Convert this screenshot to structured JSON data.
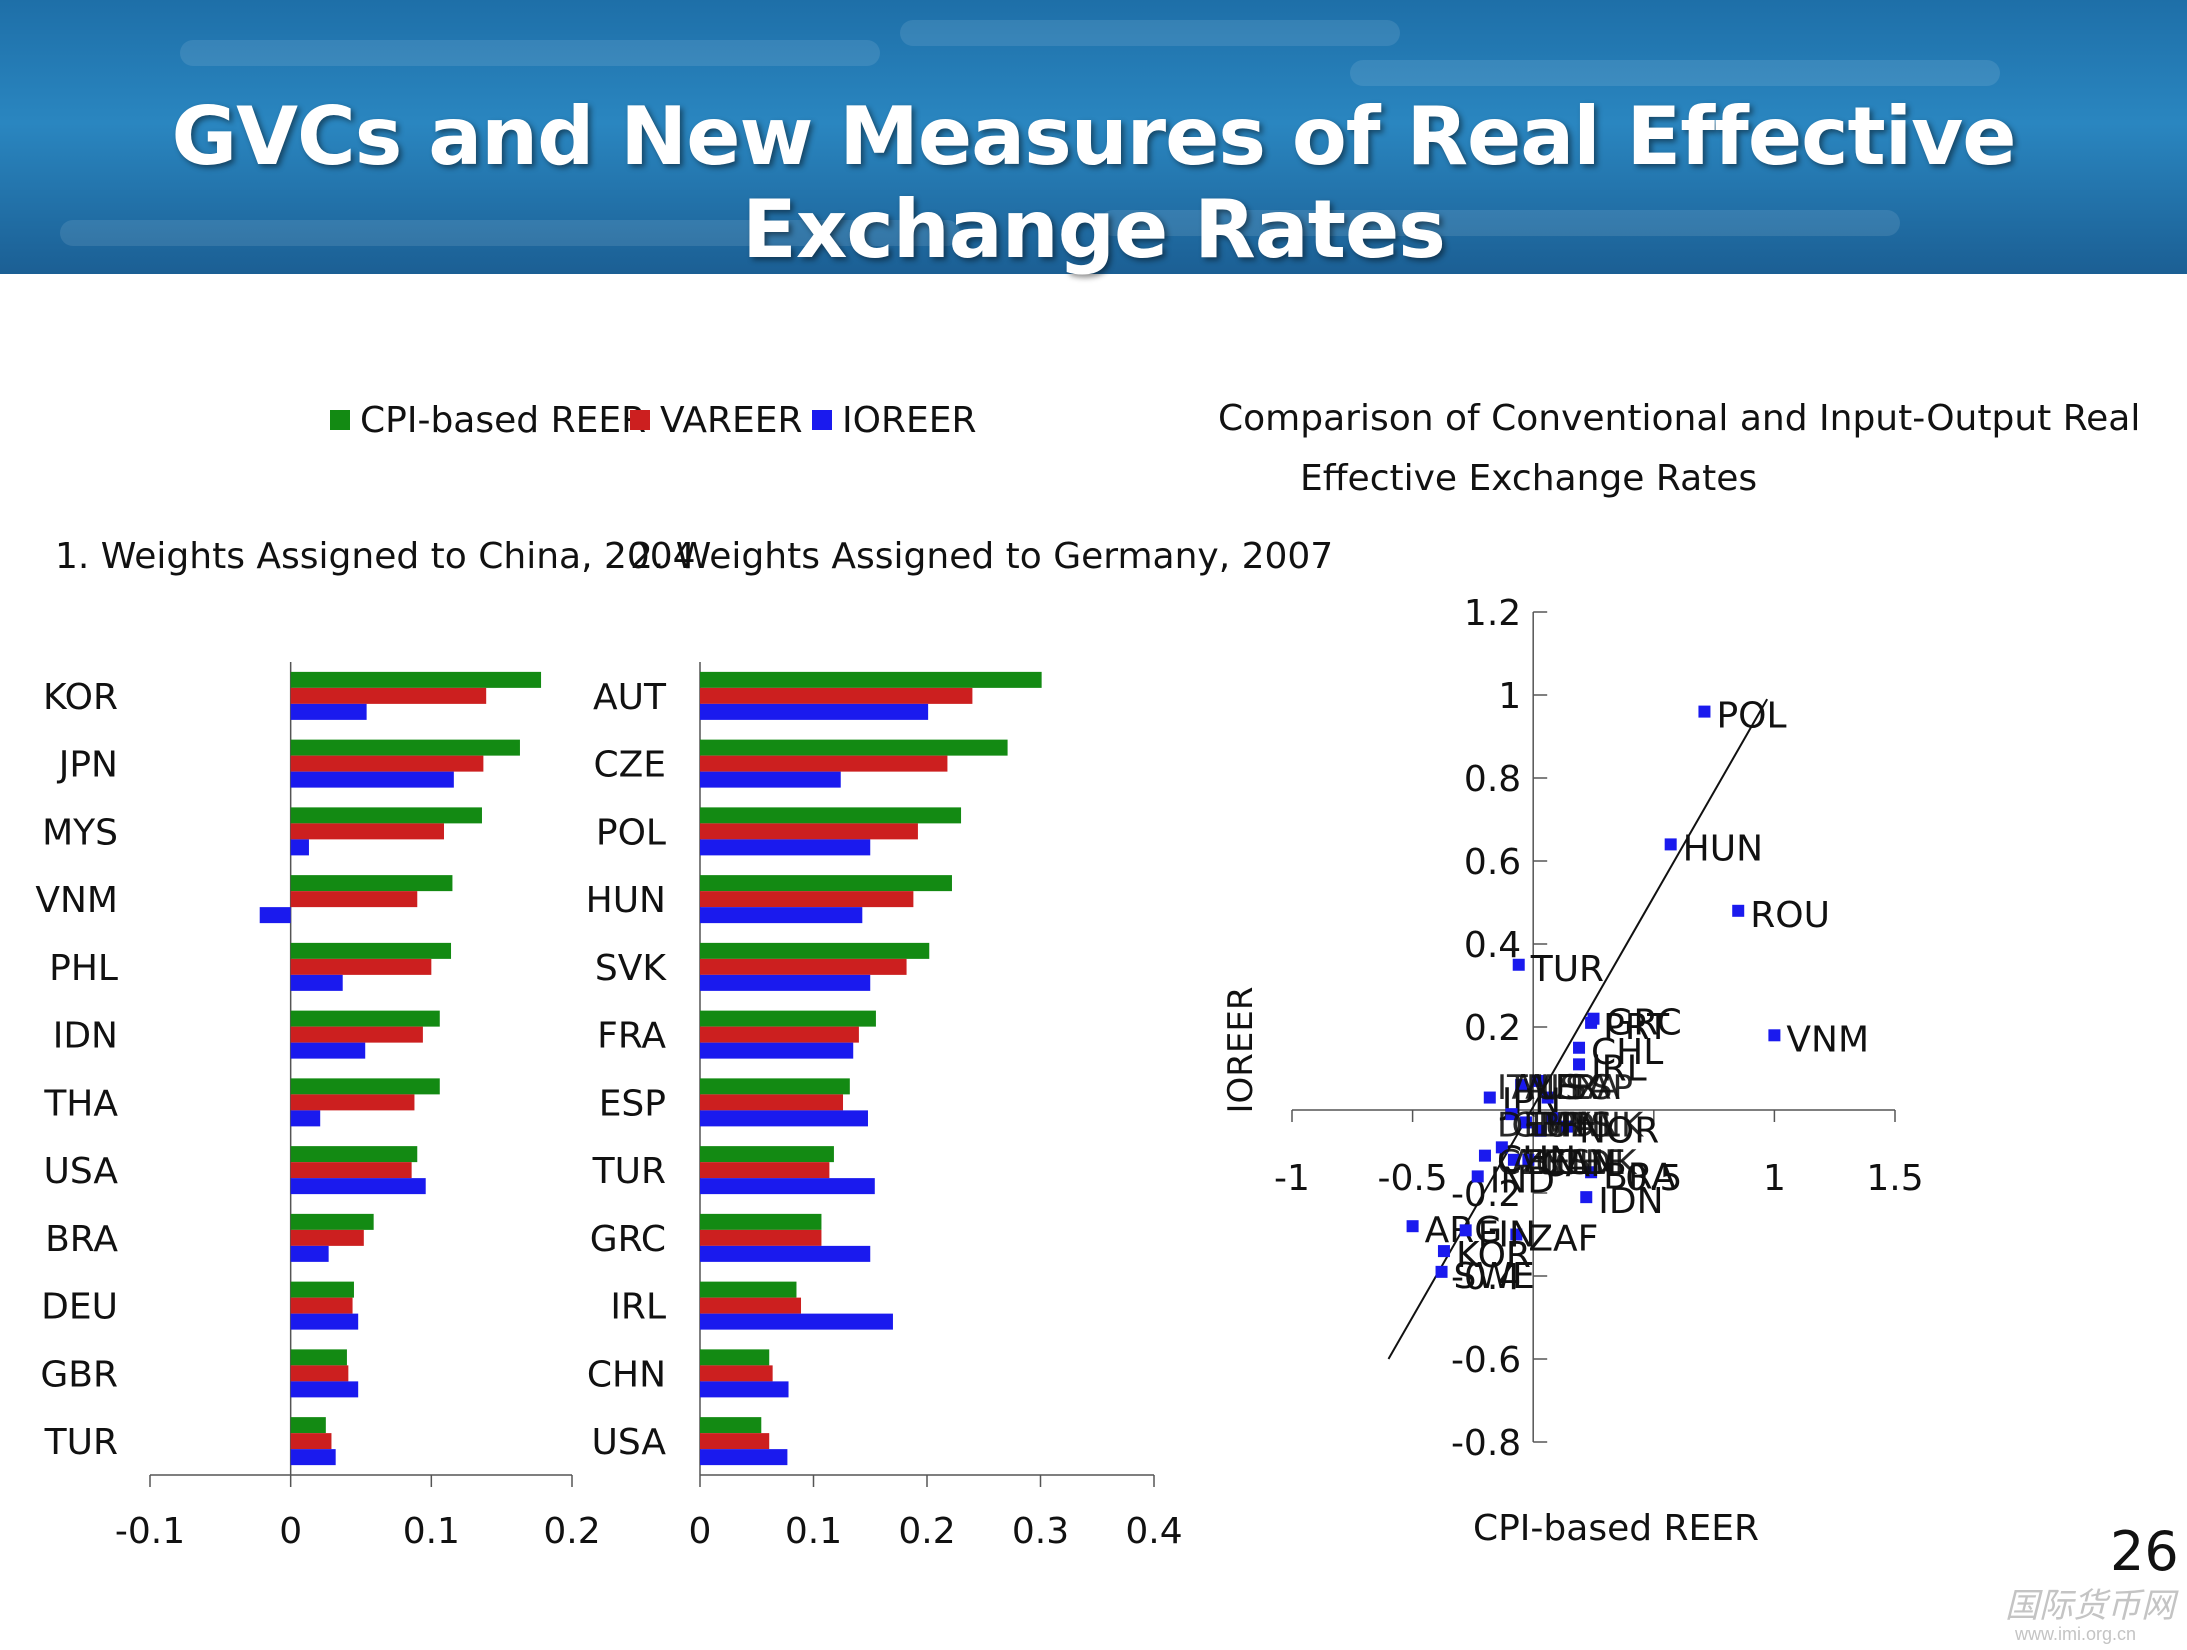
{
  "slide": {
    "title": "GVCs and New Measures of Real Effective Exchange Rates",
    "page_number": "26",
    "watermark": "国际货币网",
    "watermark_url": "www.imi.org.cn"
  },
  "legend": [
    {
      "label": "CPI-based REER",
      "color": "#138a13"
    },
    {
      "label": "VAREER",
      "color": "#cc1f1f"
    },
    {
      "label": "IOREER",
      "color": "#1a1aee"
    }
  ],
  "chart_data": [
    {
      "type": "bar",
      "orientation": "horizontal",
      "title": "1. Weights Assigned to China, 2004",
      "categories": [
        "KOR",
        "JPN",
        "MYS",
        "VNM",
        "PHL",
        "IDN",
        "THA",
        "USA",
        "BRA",
        "DEU",
        "GBR",
        "TUR"
      ],
      "series": [
        {
          "name": "CPI-based REER",
          "color": "#138a13",
          "values": [
            0.178,
            0.163,
            0.136,
            0.115,
            0.114,
            0.106,
            0.106,
            0.09,
            0.059,
            0.045,
            0.04,
            0.025
          ]
        },
        {
          "name": "VAREER",
          "color": "#cc1f1f",
          "values": [
            0.139,
            0.137,
            0.109,
            0.09,
            0.1,
            0.094,
            0.088,
            0.086,
            0.052,
            0.044,
            0.041,
            0.029
          ]
        },
        {
          "name": "IOREER",
          "color": "#1a1aee",
          "values": [
            0.054,
            0.116,
            0.013,
            -0.022,
            0.037,
            0.053,
            0.021,
            0.096,
            0.027,
            0.048,
            0.048,
            0.032
          ]
        }
      ],
      "xlim": [
        -0.1,
        0.2
      ],
      "xticks": [
        "-0.1",
        "0",
        "0.1",
        "0.2"
      ]
    },
    {
      "type": "bar",
      "orientation": "horizontal",
      "title": "2. Weights Assigned to Germany, 2007",
      "categories": [
        "AUT",
        "CZE",
        "POL",
        "HUN",
        "SVK",
        "FRA",
        "ESP",
        "TUR",
        "GRC",
        "IRL",
        "CHN",
        "USA"
      ],
      "series": [
        {
          "name": "CPI-based REER",
          "color": "#138a13",
          "values": [
            0.301,
            0.271,
            0.23,
            0.222,
            0.202,
            0.155,
            0.132,
            0.118,
            0.107,
            0.085,
            0.061,
            0.054
          ]
        },
        {
          "name": "VAREER",
          "color": "#cc1f1f",
          "values": [
            0.24,
            0.218,
            0.192,
            0.188,
            0.182,
            0.14,
            0.126,
            0.114,
            0.107,
            0.089,
            0.064,
            0.061
          ]
        },
        {
          "name": "IOREER",
          "color": "#1a1aee",
          "values": [
            0.201,
            0.124,
            0.15,
            0.143,
            0.15,
            0.135,
            0.148,
            0.154,
            0.15,
            0.17,
            0.078,
            0.077
          ]
        }
      ],
      "xlim": [
        0,
        0.4
      ],
      "xticks": [
        "0",
        "0.1",
        "0.2",
        "0.3",
        "0.4"
      ]
    },
    {
      "type": "scatter",
      "title": "Comparison of Conventional and Input-Output Real",
      "title2": "Effective Exchange Rates",
      "xlabel": "CPI-based REER",
      "ylabel": "IOREER",
      "xlim": [
        -1,
        1.5
      ],
      "ylim": [
        -0.8,
        1.2
      ],
      "xticks": [
        "-1",
        "-0.5",
        "0.5",
        "1",
        "1.5"
      ],
      "yticks": [
        "1.2",
        "1",
        "0.8",
        "0.6",
        "0.4",
        "0.2",
        "-0.2",
        "-0.4",
        "-0.6",
        "-0.8"
      ],
      "fit_line": {
        "x": [
          -0.6,
          0.97
        ],
        "y": [
          -0.6,
          0.99
        ]
      },
      "points": [
        {
          "label": "POL",
          "x": 0.71,
          "y": 0.96
        },
        {
          "label": "HUN",
          "x": 0.57,
          "y": 0.64
        },
        {
          "label": "ROU",
          "x": 0.85,
          "y": 0.48
        },
        {
          "label": "VNM",
          "x": 1.0,
          "y": 0.18
        },
        {
          "label": "TUR",
          "x": -0.06,
          "y": 0.35
        },
        {
          "label": "GRC",
          "x": 0.25,
          "y": 0.22
        },
        {
          "label": "PRT",
          "x": 0.24,
          "y": 0.21
        },
        {
          "label": "CHL",
          "x": 0.19,
          "y": 0.15
        },
        {
          "label": "IRL",
          "x": 0.19,
          "y": 0.11
        },
        {
          "label": "JPN",
          "x": -0.18,
          "y": 0.03
        },
        {
          "label": "NOR",
          "x": 0.14,
          "y": -0.04
        },
        {
          "label": "BRA",
          "x": 0.24,
          "y": -0.15
        },
        {
          "label": "IDN",
          "x": 0.22,
          "y": -0.21
        },
        {
          "label": "IND",
          "x": -0.23,
          "y": -0.16
        },
        {
          "label": "CHN",
          "x": -0.2,
          "y": -0.11
        },
        {
          "label": "CAN",
          "x": -0.02,
          "y": -0.12
        },
        {
          "label": "ZAF",
          "x": -0.07,
          "y": -0.3
        },
        {
          "label": "ARG",
          "x": -0.5,
          "y": -0.28
        },
        {
          "label": "FIN",
          "x": -0.28,
          "y": -0.29
        },
        {
          "label": "KOR",
          "x": -0.37,
          "y": -0.34
        },
        {
          "label": "SWE",
          "x": -0.38,
          "y": -0.39
        },
        {
          "label": "",
          "x": -0.05,
          "y": 0.06
        },
        {
          "label": "",
          "x": 0.02,
          "y": 0.07
        },
        {
          "label": "",
          "x": 0.06,
          "y": 0.03
        },
        {
          "label": "",
          "x": -0.09,
          "y": -0.01
        },
        {
          "label": "",
          "x": -0.03,
          "y": -0.03
        },
        {
          "label": "",
          "x": 0.03,
          "y": -0.05
        },
        {
          "label": "",
          "x": -0.13,
          "y": -0.09
        },
        {
          "label": "",
          "x": 0.08,
          "y": -0.02
        },
        {
          "label": "",
          "x": -0.08,
          "y": -0.12
        }
      ],
      "overlap_labels": [
        "ITA",
        "AUS",
        "MEX",
        "USA",
        "FRA",
        "ESP",
        "DEU",
        "GBR",
        "THA",
        "MYS",
        "PHL",
        "DNK",
        "CZE",
        "AUT",
        "BEL",
        "NLD",
        "CHE",
        "SVK"
      ]
    }
  ]
}
